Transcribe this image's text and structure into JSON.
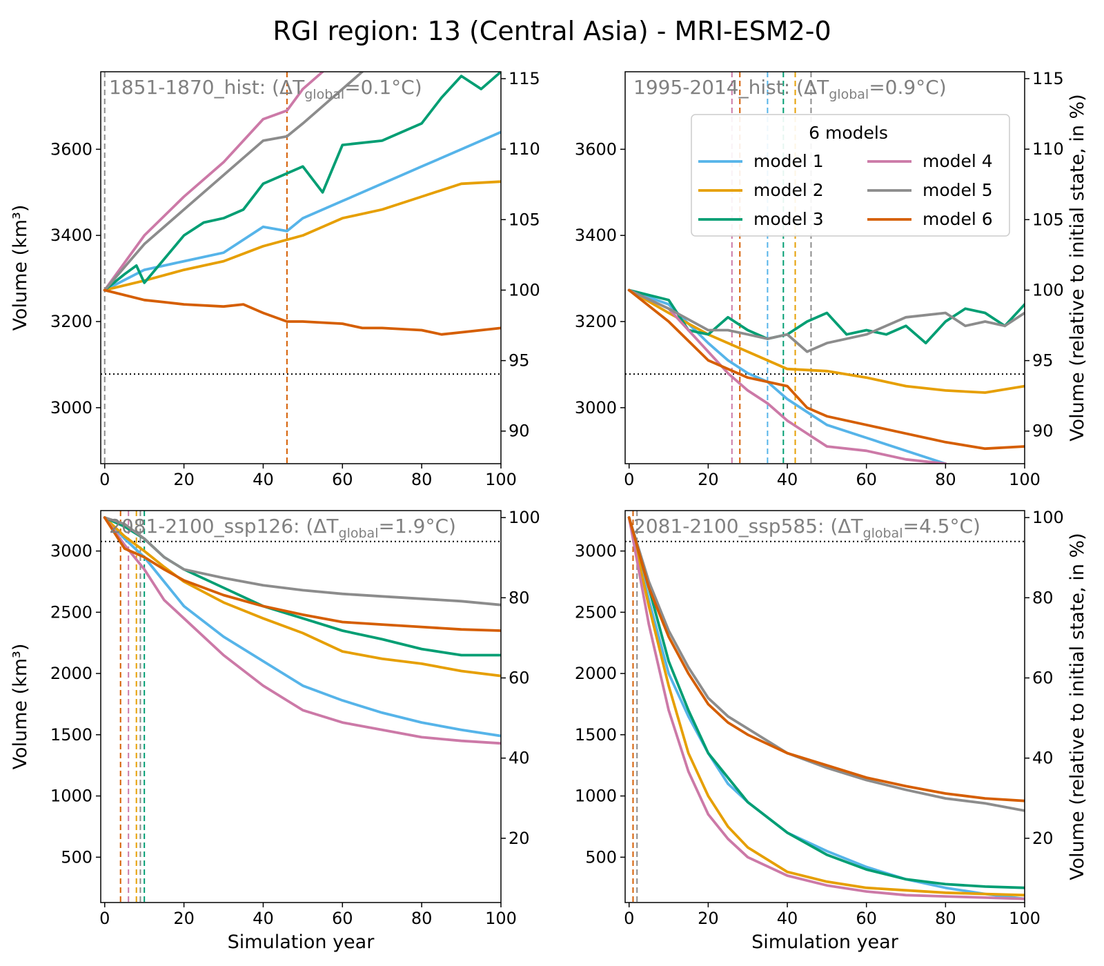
{
  "figure": {
    "title": "RGI region: 13 (Central Asia) - MRI-ESM2-0"
  },
  "colors": {
    "model 1": "#56b4e9",
    "model 2": "#e69f00",
    "model 3": "#009e73",
    "model 4": "#cc79a7",
    "model 5": "#8c8c8c",
    "model 6": "#d55e00"
  },
  "legend": {
    "title": "6 models",
    "entries": [
      "model 1",
      "model 2",
      "model 3",
      "model 4",
      "model 5",
      "model 6"
    ]
  },
  "chart_data": [
    {
      "type": "line",
      "panel": "top-left",
      "title_prefix": "1851-1870_hist: (ΔT",
      "title_sub": "global",
      "title_suffix": "=0.1°C)",
      "xlabel": "",
      "ylabel": "Volume (km³)",
      "ylabel_right": "",
      "xlim": [
        -1,
        100
      ],
      "ylim": [
        2870,
        3780
      ],
      "xticks": [
        0,
        20,
        40,
        60,
        80,
        100
      ],
      "yticks": [
        3000,
        3200,
        3400,
        3600
      ],
      "yticks_right": [
        90,
        95,
        100,
        105,
        110,
        115
      ],
      "initial_volume": 3273,
      "threshold_volume": 3078,
      "vlines": [
        {
          "x": 0,
          "series": "model 5"
        },
        {
          "x": 46,
          "series": "model 6"
        }
      ],
      "series": [
        {
          "name": "model 1",
          "x": [
            0,
            10,
            20,
            30,
            40,
            46,
            50,
            60,
            70,
            80,
            90,
            100
          ],
          "values": [
            3273,
            3320,
            3340,
            3360,
            3420,
            3410,
            3440,
            3480,
            3520,
            3560,
            3600,
            3640
          ]
        },
        {
          "name": "model 2",
          "x": [
            0,
            10,
            20,
            30,
            40,
            50,
            60,
            70,
            80,
            90,
            100
          ],
          "values": [
            3273,
            3295,
            3320,
            3340,
            3375,
            3400,
            3440,
            3460,
            3490,
            3520,
            3525
          ]
        },
        {
          "name": "model 3",
          "x": [
            0,
            5,
            8,
            10,
            20,
            25,
            30,
            35,
            40,
            50,
            55,
            60,
            70,
            80,
            85,
            90,
            95,
            100
          ],
          "values": [
            3273,
            3310,
            3330,
            3290,
            3400,
            3430,
            3440,
            3460,
            3520,
            3560,
            3500,
            3610,
            3620,
            3660,
            3720,
            3770,
            3740,
            3780
          ]
        },
        {
          "name": "model 4",
          "x": [
            0,
            10,
            20,
            30,
            40,
            46,
            50,
            55
          ],
          "values": [
            3273,
            3400,
            3490,
            3570,
            3670,
            3690,
            3740,
            3780
          ]
        },
        {
          "name": "model 5",
          "x": [
            0,
            10,
            20,
            30,
            40,
            46,
            50,
            60,
            65
          ],
          "values": [
            3273,
            3380,
            3460,
            3540,
            3620,
            3630,
            3660,
            3740,
            3780
          ]
        },
        {
          "name": "model 6",
          "x": [
            0,
            10,
            15,
            20,
            30,
            35,
            40,
            46,
            50,
            60,
            65,
            70,
            80,
            85,
            90,
            95,
            100
          ],
          "values": [
            3273,
            3250,
            3245,
            3240,
            3235,
            3240,
            3220,
            3200,
            3200,
            3195,
            3185,
            3185,
            3180,
            3170,
            3175,
            3180,
            3185
          ]
        }
      ]
    },
    {
      "type": "line",
      "panel": "top-right",
      "title_prefix": "1995-2014_hist: (ΔT",
      "title_sub": "global",
      "title_suffix": "=0.9°C)",
      "xlabel": "",
      "ylabel": "",
      "ylabel_right": "Volume (relative to initial state, in %)",
      "xlim": [
        -1,
        100
      ],
      "ylim": [
        2870,
        3780
      ],
      "xticks": [
        0,
        20,
        40,
        60,
        80,
        100
      ],
      "yticks": [
        3000,
        3200,
        3400,
        3600
      ],
      "yticks_right": [
        90,
        95,
        100,
        105,
        110,
        115
      ],
      "initial_volume": 3273,
      "threshold_volume": 3078,
      "vlines": [
        {
          "x": 26,
          "series": "model 4"
        },
        {
          "x": 28,
          "series": "model 6"
        },
        {
          "x": 35,
          "series": "model 1"
        },
        {
          "x": 39,
          "series": "model 3"
        },
        {
          "x": 42,
          "series": "model 2"
        },
        {
          "x": 46,
          "series": "model 5"
        }
      ],
      "series": [
        {
          "name": "model 1",
          "x": [
            0,
            10,
            20,
            25,
            30,
            35,
            40,
            45,
            50,
            60,
            70,
            80
          ],
          "values": [
            3273,
            3240,
            3150,
            3110,
            3080,
            3060,
            3020,
            2990,
            2960,
            2930,
            2900,
            2870
          ]
        },
        {
          "name": "model 2",
          "x": [
            0,
            10,
            20,
            30,
            40,
            50,
            60,
            70,
            80,
            90,
            100
          ],
          "values": [
            3273,
            3220,
            3170,
            3130,
            3090,
            3085,
            3070,
            3050,
            3040,
            3035,
            3050
          ]
        },
        {
          "name": "model 3",
          "x": [
            0,
            10,
            15,
            20,
            25,
            30,
            35,
            40,
            45,
            50,
            55,
            60,
            65,
            70,
            75,
            80,
            85,
            90,
            95,
            100
          ],
          "values": [
            3273,
            3250,
            3180,
            3170,
            3210,
            3180,
            3160,
            3170,
            3200,
            3220,
            3170,
            3180,
            3170,
            3190,
            3150,
            3200,
            3230,
            3220,
            3190,
            3240
          ]
        },
        {
          "name": "model 4",
          "x": [
            0,
            10,
            20,
            25,
            30,
            35,
            40,
            45,
            50,
            60,
            70,
            80
          ],
          "values": [
            3273,
            3230,
            3130,
            3080,
            3040,
            3010,
            2970,
            2940,
            2910,
            2900,
            2880,
            2870
          ]
        },
        {
          "name": "model 5",
          "x": [
            0,
            10,
            20,
            25,
            30,
            35,
            40,
            45,
            50,
            60,
            70,
            80,
            85,
            90,
            95,
            100
          ],
          "values": [
            3273,
            3230,
            3180,
            3180,
            3170,
            3160,
            3170,
            3130,
            3150,
            3170,
            3210,
            3220,
            3190,
            3200,
            3190,
            3220
          ]
        },
        {
          "name": "model 6",
          "x": [
            0,
            10,
            20,
            30,
            40,
            45,
            50,
            60,
            70,
            80,
            90,
            100
          ],
          "values": [
            3273,
            3200,
            3110,
            3070,
            3050,
            3000,
            2980,
            2960,
            2940,
            2920,
            2905,
            2910
          ]
        }
      ]
    },
    {
      "type": "line",
      "panel": "bottom-left",
      "title_prefix": "2081-2100_ssp126: (ΔT",
      "title_sub": "global",
      "title_suffix": "=1.9°C)",
      "xlabel": "Simulation year",
      "ylabel": "Volume (km³)",
      "ylabel_right": "",
      "xlim": [
        -1,
        100
      ],
      "ylim": [
        130,
        3330
      ],
      "xticks": [
        0,
        20,
        40,
        60,
        80,
        100
      ],
      "yticks": [
        500,
        1000,
        1500,
        2000,
        2500,
        3000
      ],
      "yticks_right": [
        20,
        40,
        60,
        80,
        100
      ],
      "initial_volume": 3273,
      "threshold_volume": 3078,
      "vlines": [
        {
          "x": 4,
          "series": "model 6"
        },
        {
          "x": 6,
          "series": "model 4"
        },
        {
          "x": 8,
          "series": "model 2"
        },
        {
          "x": 9,
          "series": "model 5"
        },
        {
          "x": 10,
          "series": "model 3"
        }
      ],
      "series": [
        {
          "name": "model 1",
          "x": [
            0,
            5,
            10,
            15,
            20,
            30,
            40,
            50,
            60,
            70,
            80,
            90,
            100
          ],
          "values": [
            3273,
            3100,
            2950,
            2750,
            2550,
            2300,
            2100,
            1900,
            1780,
            1680,
            1600,
            1540,
            1490
          ]
        },
        {
          "name": "model 2",
          "x": [
            0,
            5,
            10,
            15,
            20,
            30,
            40,
            50,
            60,
            70,
            80,
            90,
            100
          ],
          "values": [
            3273,
            3120,
            3000,
            2870,
            2750,
            2580,
            2450,
            2330,
            2180,
            2120,
            2080,
            2020,
            1980
          ]
        },
        {
          "name": "model 3",
          "x": [
            0,
            5,
            10,
            15,
            20,
            30,
            40,
            50,
            60,
            70,
            80,
            90,
            100
          ],
          "values": [
            3273,
            3200,
            3100,
            2950,
            2850,
            2700,
            2550,
            2450,
            2350,
            2280,
            2200,
            2150,
            2150
          ]
        },
        {
          "name": "model 4",
          "x": [
            0,
            5,
            10,
            15,
            20,
            30,
            40,
            50,
            60,
            70,
            80,
            90,
            100
          ],
          "values": [
            3273,
            3050,
            2850,
            2600,
            2450,
            2150,
            1900,
            1700,
            1600,
            1540,
            1480,
            1450,
            1430
          ]
        },
        {
          "name": "model 5",
          "x": [
            0,
            5,
            10,
            15,
            20,
            30,
            40,
            50,
            60,
            70,
            80,
            90,
            100
          ],
          "values": [
            3273,
            3220,
            3100,
            2950,
            2850,
            2780,
            2720,
            2680,
            2650,
            2630,
            2610,
            2590,
            2560
          ]
        },
        {
          "name": "model 6",
          "x": [
            0,
            5,
            10,
            15,
            20,
            30,
            40,
            50,
            60,
            70,
            80,
            90,
            100
          ],
          "values": [
            3273,
            3020,
            2950,
            2850,
            2760,
            2640,
            2550,
            2480,
            2420,
            2400,
            2380,
            2360,
            2350
          ]
        }
      ]
    },
    {
      "type": "line",
      "panel": "bottom-right",
      "title_prefix": "2081-2100_ssp585: (ΔT",
      "title_sub": "global",
      "title_suffix": "=4.5°C)",
      "xlabel": "Simulation year",
      "ylabel": "",
      "ylabel_right": "Volume (relative to initial state, in %)",
      "xlim": [
        -1,
        100
      ],
      "ylim": [
        130,
        3330
      ],
      "xticks": [
        0,
        20,
        40,
        60,
        80,
        100
      ],
      "yticks": [
        500,
        1000,
        1500,
        2000,
        2500,
        3000
      ],
      "yticks_right": [
        20,
        40,
        60,
        80,
        100
      ],
      "initial_volume": 3273,
      "threshold_volume": 3078,
      "vlines": [
        {
          "x": 1,
          "series": "model 6"
        },
        {
          "x": 2,
          "series": "model 5"
        }
      ],
      "series": [
        {
          "name": "model 1",
          "x": [
            0,
            5,
            10,
            15,
            20,
            25,
            30,
            40,
            50,
            60,
            70,
            80,
            90,
            100
          ],
          "values": [
            3273,
            2600,
            2000,
            1650,
            1350,
            1100,
            950,
            700,
            550,
            420,
            320,
            250,
            200,
            160
          ]
        },
        {
          "name": "model 2",
          "x": [
            0,
            5,
            10,
            15,
            20,
            25,
            30,
            40,
            50,
            60,
            70,
            80,
            90,
            100
          ],
          "values": [
            3273,
            2550,
            1900,
            1350,
            1000,
            750,
            580,
            380,
            300,
            250,
            230,
            210,
            200,
            190
          ]
        },
        {
          "name": "model 3",
          "x": [
            0,
            5,
            10,
            15,
            20,
            25,
            30,
            40,
            50,
            60,
            70,
            80,
            90,
            100
          ],
          "values": [
            3273,
            2700,
            2100,
            1700,
            1350,
            1150,
            950,
            700,
            520,
            400,
            320,
            280,
            260,
            250
          ]
        },
        {
          "name": "model 4",
          "x": [
            0,
            5,
            10,
            15,
            20,
            25,
            30,
            40,
            50,
            60,
            70,
            80,
            90,
            100
          ],
          "values": [
            3273,
            2400,
            1700,
            1200,
            850,
            650,
            500,
            350,
            270,
            220,
            190,
            180,
            170,
            160
          ]
        },
        {
          "name": "model 5",
          "x": [
            0,
            5,
            10,
            15,
            20,
            25,
            30,
            40,
            50,
            60,
            70,
            80,
            90,
            100
          ],
          "values": [
            3273,
            2750,
            2350,
            2050,
            1800,
            1650,
            1550,
            1350,
            1230,
            1130,
            1050,
            980,
            940,
            880
          ]
        },
        {
          "name": "model 6",
          "x": [
            0,
            5,
            10,
            15,
            20,
            25,
            30,
            40,
            50,
            60,
            70,
            80,
            90,
            100
          ],
          "values": [
            3273,
            2700,
            2300,
            2000,
            1750,
            1600,
            1500,
            1350,
            1250,
            1150,
            1080,
            1020,
            980,
            960
          ]
        }
      ]
    }
  ]
}
